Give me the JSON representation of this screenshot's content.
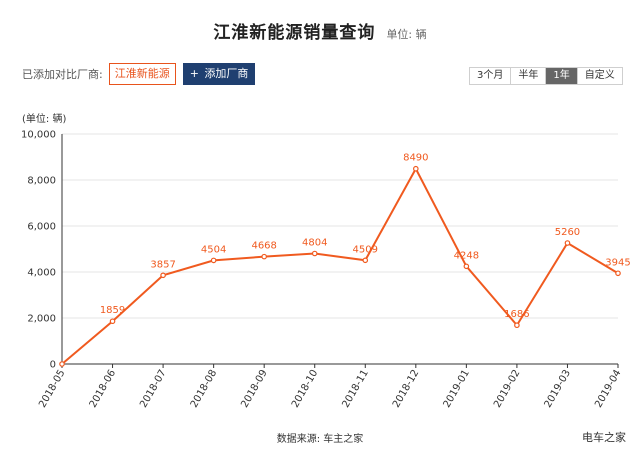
{
  "header": {
    "title": "江淮新能源销量查询",
    "unit": "单位: 辆"
  },
  "compare": {
    "label": "已添加对比厂商:",
    "brand": "江淮新能源",
    "add_plus": "+",
    "add_label": "添加厂商"
  },
  "range": {
    "options": [
      "3个月",
      "半年",
      "1年",
      "自定义"
    ],
    "selected": "1年"
  },
  "footer": {
    "source": "数据来源: 车主之家",
    "watermark": "电车之家"
  },
  "colors": {
    "line": "#f05a1f",
    "accent_brand": "#e8531c",
    "add_button": "#1f3f70"
  },
  "chart_data": {
    "type": "line",
    "ylabel": "(单位: 辆)",
    "categories": [
      "2018-05",
      "2018-06",
      "2018-07",
      "2018-08",
      "2018-09",
      "2018-10",
      "2018-11",
      "2018-12",
      "2019-01",
      "2019-02",
      "2019-03",
      "2019-04"
    ],
    "series": [
      {
        "values": [
          0,
          1859,
          3857,
          4504,
          4668,
          4804,
          4509,
          8490,
          4248,
          1686,
          5260,
          3945
        ]
      }
    ],
    "ylim": [
      0,
      10000
    ],
    "yticks": [
      0,
      2000,
      4000,
      6000,
      8000,
      10000
    ],
    "ytick_labels": [
      "0",
      "2,000",
      "4,000",
      "6,000",
      "8,000",
      "10,000"
    ],
    "grid": "horizontal",
    "data_labels": [
      "",
      "1859",
      "3857",
      "4504",
      "4668",
      "4804",
      "4509",
      "8490",
      "4248",
      "1686",
      "5260",
      "3945"
    ]
  }
}
